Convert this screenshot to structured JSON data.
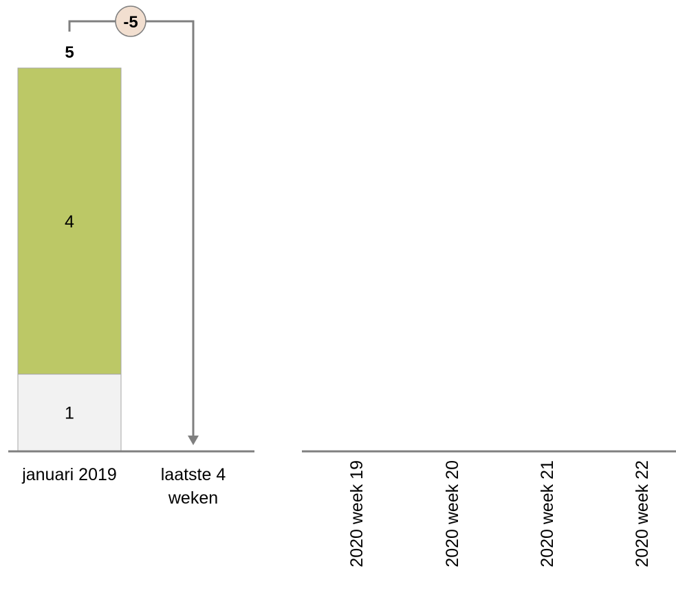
{
  "colors": {
    "segment_bottom": "#f2f2f2",
    "segment_top": "#bcc866",
    "segment_stroke": "#a6a6a6",
    "axis": "#7f7f7f",
    "connector": "#7f7f7f",
    "badge_fill": "#f2dfd0",
    "badge_stroke": "#7f7f7f",
    "text": "#000000"
  },
  "chart_data": [
    {
      "type": "bar",
      "stacked": true,
      "categories": [
        "januari 2019",
        "laatste 4 weken"
      ],
      "series": [
        {
          "values": [
            1,
            null
          ],
          "color": "#f2f2f2"
        },
        {
          "values": [
            4,
            null
          ],
          "color": "#bcc866"
        }
      ],
      "totals": [
        "5",
        ""
      ],
      "annotations": [
        {
          "type": "difference-arrow",
          "from": "januari 2019",
          "to": "laatste 4 weken",
          "label": "-5"
        }
      ],
      "ylim": [
        0,
        5
      ],
      "grid": false,
      "legend": "none"
    },
    {
      "type": "bar",
      "categories": [
        "2020 week 19",
        "2020 week 20",
        "2020 week 21",
        "2020 week 22"
      ],
      "series": [],
      "grid": false,
      "legend": "none"
    }
  ]
}
